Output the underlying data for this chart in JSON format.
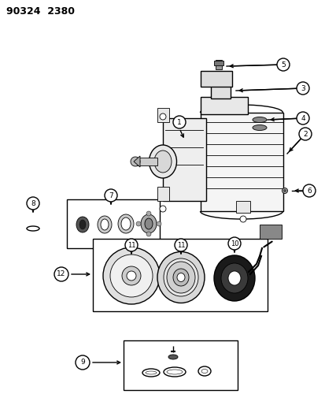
{
  "title": "90324  2380",
  "bg_color": "#ffffff",
  "fig_width": 4.14,
  "fig_height": 5.33,
  "dpi": 100,
  "lw_main": 1.0,
  "lw_thin": 0.6,
  "circle_r": 8,
  "circle_font": 6.5
}
